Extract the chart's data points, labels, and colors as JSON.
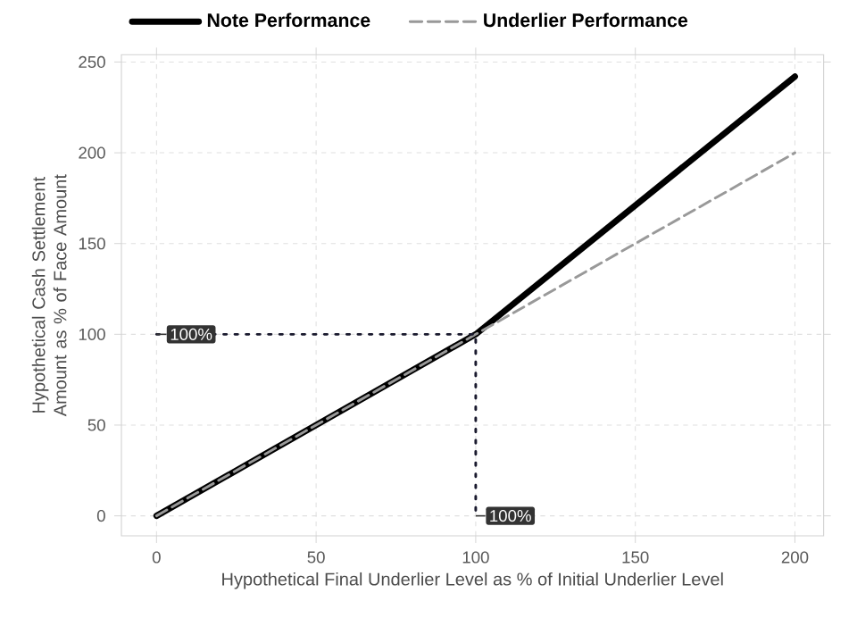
{
  "chart_data": {
    "type": "line",
    "xlabel": "Hypothetical Final Underlier Level as % of Initial Underlier Level",
    "ylabel": "Hypothetical Cash Settlement Amount as % of Face Amount",
    "series": [
      {
        "name": "Note Performance",
        "color": "#000000",
        "x": [
          0,
          100,
          200
        ],
        "values": [
          0,
          100,
          242
        ],
        "line_style": "solid"
      },
      {
        "name": "Underlier Performance",
        "color": "#999999",
        "x": [
          0,
          100,
          200
        ],
        "values": [
          0,
          100,
          200
        ],
        "line_style": "dashed"
      },
      {
        "color": "#1a1a2e",
        "x": [
          0,
          100,
          100
        ],
        "values": [
          100,
          100,
          0
        ],
        "line_style": "dotted"
      }
    ],
    "annotations": [
      {
        "text": "100%",
        "x": 0,
        "y": 100
      },
      {
        "text": "100%",
        "x": 100,
        "y": 0
      }
    ],
    "xlim": [
      -11,
      209
    ],
    "ylim": [
      -11,
      254
    ],
    "xticks": [
      0,
      50,
      100,
      150,
      200
    ],
    "yticks": [
      0,
      50,
      100,
      150,
      200,
      250
    ],
    "grid": true,
    "legend": "top"
  }
}
